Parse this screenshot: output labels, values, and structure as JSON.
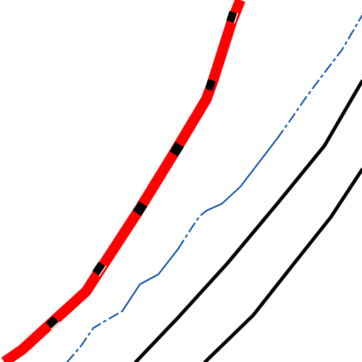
{
  "map": {
    "background_color": "#ffffff",
    "features": [
      {
        "id": "motorway",
        "kind": "highway",
        "casing_color": "#000000",
        "fill_color": "#ff0000",
        "bridge_marker_color": "#000000"
      },
      {
        "id": "waterway",
        "kind": "stream",
        "color": "#0b4ea2",
        "style": "solid-then-dashdot"
      },
      {
        "id": "road-upper",
        "kind": "road",
        "color": "#000000"
      },
      {
        "id": "road-lower",
        "kind": "road",
        "color": "#000000"
      }
    ]
  }
}
